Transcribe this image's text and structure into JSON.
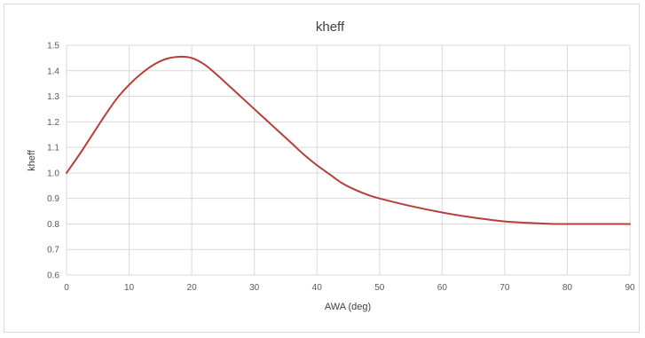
{
  "chart_data": {
    "type": "line",
    "title": "kheff",
    "xlabel": "AWA (deg)",
    "ylabel": "kheff",
    "xlim": [
      0,
      90
    ],
    "ylim": [
      0.6,
      1.5
    ],
    "x_ticks": [
      "0",
      "10",
      "20",
      "30",
      "40",
      "50",
      "60",
      "70",
      "80",
      "90"
    ],
    "y_ticks": [
      "0.6",
      "0.7",
      "0.8",
      "0.9",
      "1.0",
      "1.1",
      "1.2",
      "1.3",
      "1.4",
      "1.5"
    ],
    "grid": true,
    "legend": "none",
    "series": [
      {
        "color": "#b3403a",
        "x": [
          0,
          2,
          4,
          6,
          8,
          10,
          12,
          14,
          16,
          18,
          20,
          22,
          24,
          26,
          28,
          30,
          32,
          34,
          36,
          38,
          40,
          42,
          44,
          46,
          48,
          50,
          55,
          60,
          65,
          70,
          75,
          78,
          80,
          85,
          90
        ],
        "y": [
          1.0,
          1.07,
          1.145,
          1.22,
          1.29,
          1.345,
          1.39,
          1.425,
          1.447,
          1.455,
          1.45,
          1.425,
          1.385,
          1.34,
          1.295,
          1.25,
          1.205,
          1.16,
          1.115,
          1.07,
          1.03,
          0.995,
          0.96,
          0.935,
          0.915,
          0.9,
          0.87,
          0.845,
          0.825,
          0.81,
          0.803,
          0.8,
          0.8,
          0.8,
          0.8
        ]
      }
    ]
  }
}
